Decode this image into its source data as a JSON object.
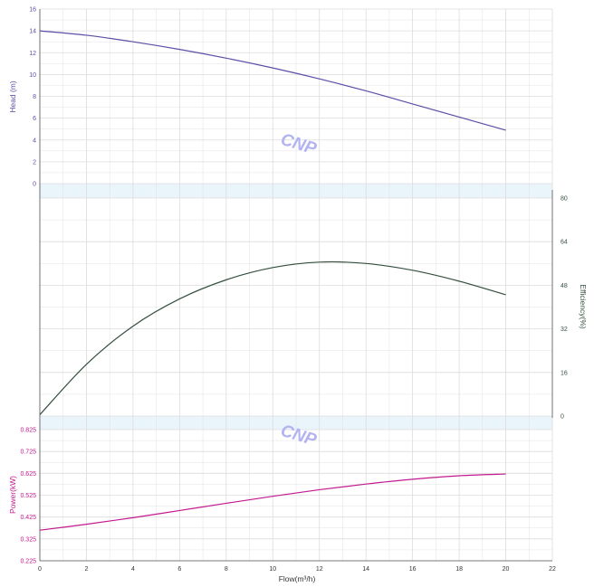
{
  "colors": {
    "head": "#5b4fa6",
    "efficiency": "#35503f",
    "power": "#c3198f",
    "grid": "#dcdcdc",
    "band": "#eaf4fb",
    "axis_text": "#333333",
    "watermark": "#b3b3f2"
  },
  "watermark_text": [
    "CNP",
    "CNP"
  ],
  "chart_data": [
    {
      "type": "line",
      "name": "head",
      "xlabel": "",
      "ylabel": "Head (m)",
      "xlim": [
        0,
        22
      ],
      "ylim": [
        0,
        16
      ],
      "yticks": [
        "0",
        "2",
        "4",
        "6",
        "8",
        "10",
        "12",
        "14",
        "16"
      ],
      "series": [
        {
          "x": [
            0,
            2,
            4,
            6,
            8,
            10,
            12,
            14,
            16,
            18,
            20
          ],
          "y": [
            14.0,
            13.6,
            13.0,
            12.3,
            11.5,
            10.6,
            9.6,
            8.5,
            7.3,
            6.1,
            4.9
          ]
        }
      ],
      "grid": true
    },
    {
      "type": "line",
      "name": "efficiency",
      "xlabel": "",
      "ylabel": "Efficiency(%)",
      "ylim": [
        0,
        80
      ],
      "yticks": [
        "0",
        "16",
        "32",
        "48",
        "64",
        "80"
      ],
      "series": [
        {
          "x": [
            0,
            2,
            4,
            6,
            8,
            10,
            12,
            14,
            16,
            18,
            20
          ],
          "y": [
            0.5,
            19,
            33,
            43,
            50,
            54.5,
            56.5,
            56,
            53.5,
            49.5,
            44.5
          ]
        }
      ],
      "grid": true
    },
    {
      "type": "line",
      "name": "power",
      "xlabel": "Flow(m³/h)",
      "ylabel": "Power(kW)",
      "xlim": [
        0,
        22
      ],
      "ylim": [
        0.225,
        0.825
      ],
      "xticks": [
        "0",
        "2",
        "4",
        "6",
        "8",
        "10",
        "12",
        "14",
        "16",
        "18",
        "20",
        "22"
      ],
      "yticks": [
        "0.225",
        "0.325",
        "0.425",
        "0.525",
        "0.625",
        "0.725",
        "0.825"
      ],
      "series": [
        {
          "x": [
            0,
            2,
            4,
            6,
            8,
            10,
            12,
            14,
            16,
            18,
            20
          ],
          "y": [
            0.365,
            0.392,
            0.422,
            0.455,
            0.488,
            0.52,
            0.55,
            0.576,
            0.598,
            0.614,
            0.622
          ]
        }
      ],
      "grid": true
    }
  ]
}
